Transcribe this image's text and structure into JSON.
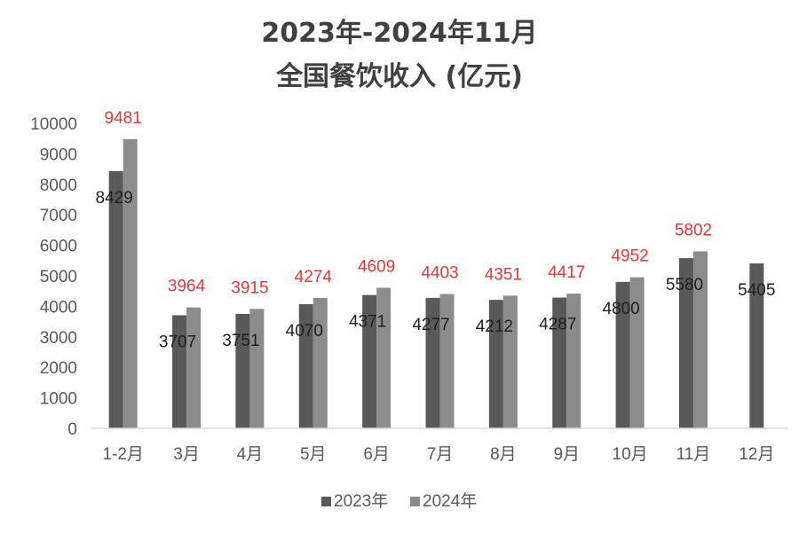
{
  "chart_data": {
    "type": "bar",
    "title": [
      "2023年-2024年11月",
      "全国餐饮收入 (亿元)"
    ],
    "categories": [
      "1-2月",
      "3月",
      "4月",
      "5月",
      "6月",
      "7月",
      "8月",
      "9月",
      "10月",
      "11月",
      "12月"
    ],
    "series": [
      {
        "name": "2023年",
        "color": "#595959",
        "label_color": "#1f1f1f",
        "values": [
          8429,
          3707,
          3751,
          4070,
          4371,
          4277,
          4212,
          4287,
          4800,
          5580,
          5405
        ]
      },
      {
        "name": "2024年",
        "color": "#8c8c8c",
        "label_color": "#e03a3a",
        "values": [
          9481,
          3964,
          3915,
          4274,
          4609,
          4403,
          4351,
          4417,
          4952,
          5802,
          null
        ]
      }
    ],
    "ylim": [
      0,
      10000
    ],
    "yticks": [
      0,
      1000,
      2000,
      3000,
      4000,
      5000,
      6000,
      7000,
      8000,
      9000,
      10000
    ],
    "xlabel": "",
    "ylabel": "",
    "grid": false,
    "legend": "bottom-center"
  }
}
